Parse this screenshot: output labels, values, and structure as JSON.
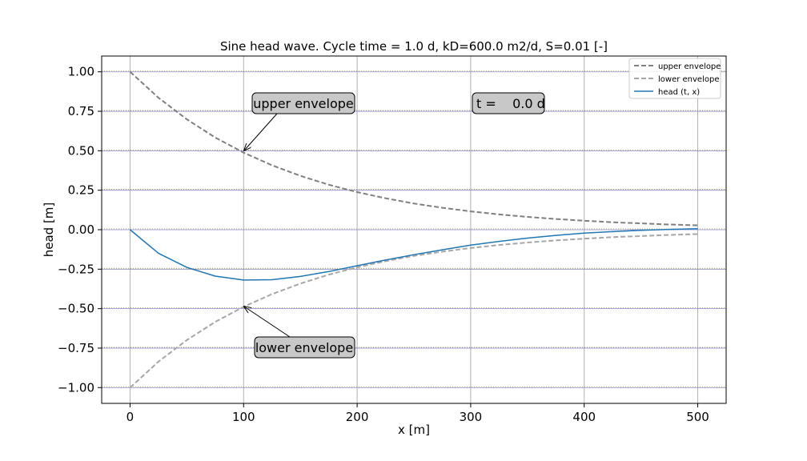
{
  "chart_data": {
    "type": "line",
    "title": "Sine head wave. Cycle time = 1.0 d, kD=600.0 m2/d, S=0.01 [-]",
    "xlabel": "x [m]",
    "ylabel": "head [m]",
    "xlim": [
      -25,
      525
    ],
    "ylim": [
      -1.1,
      1.1
    ],
    "xticks": [
      0,
      100,
      200,
      300,
      400,
      500
    ],
    "xtick_labels": [
      "0",
      "100",
      "200",
      "300",
      "400",
      "500"
    ],
    "yticks": [
      1.0,
      0.75,
      0.5,
      0.25,
      0.0,
      -0.25,
      -0.5,
      -0.75,
      -1.0
    ],
    "ytick_labels": [
      "1.00",
      "0.75",
      "0.50",
      "0.25",
      "0.00",
      "−0.25",
      "−0.50",
      "−0.75",
      "−1.00"
    ],
    "grid": true,
    "legend_position": "top-right",
    "x": [
      0,
      25,
      50,
      75,
      100,
      125,
      150,
      175,
      200,
      225,
      250,
      275,
      300,
      325,
      350,
      375,
      400,
      425,
      450,
      475,
      500
    ],
    "series": [
      {
        "name": "upper envelope",
        "style": "dashed",
        "color": "#7f7f7f",
        "values": [
          1.0,
          0.836,
          0.699,
          0.584,
          0.488,
          0.408,
          0.341,
          0.285,
          0.238,
          0.199,
          0.166,
          0.139,
          0.116,
          0.097,
          0.081,
          0.068,
          0.057,
          0.047,
          0.04,
          0.033,
          0.028
        ]
      },
      {
        "name": "lower envelope",
        "style": "dashed",
        "color": "#a6a6a6",
        "values": [
          -1.0,
          -0.836,
          -0.699,
          -0.584,
          -0.488,
          -0.408,
          -0.341,
          -0.285,
          -0.238,
          -0.199,
          -0.166,
          -0.139,
          -0.116,
          -0.097,
          -0.081,
          -0.068,
          -0.057,
          -0.047,
          -0.04,
          -0.033,
          -0.028
        ]
      },
      {
        "name": "head (t, x)",
        "style": "solid",
        "color": "#1f77b4",
        "values": [
          0.0,
          -0.149,
          -0.239,
          -0.294,
          -0.319,
          -0.317,
          -0.296,
          -0.265,
          -0.228,
          -0.192,
          -0.158,
          -0.127,
          -0.098,
          -0.074,
          -0.053,
          -0.036,
          -0.022,
          -0.012,
          -0.004,
          0.002,
          0.006
        ]
      }
    ],
    "annotations": [
      {
        "text": "upper envelope",
        "x": 100,
        "y": 0.488
      },
      {
        "text": "lower envelope",
        "x": 100,
        "y": -0.488
      }
    ],
    "time_label": "t =    0.0 d"
  }
}
